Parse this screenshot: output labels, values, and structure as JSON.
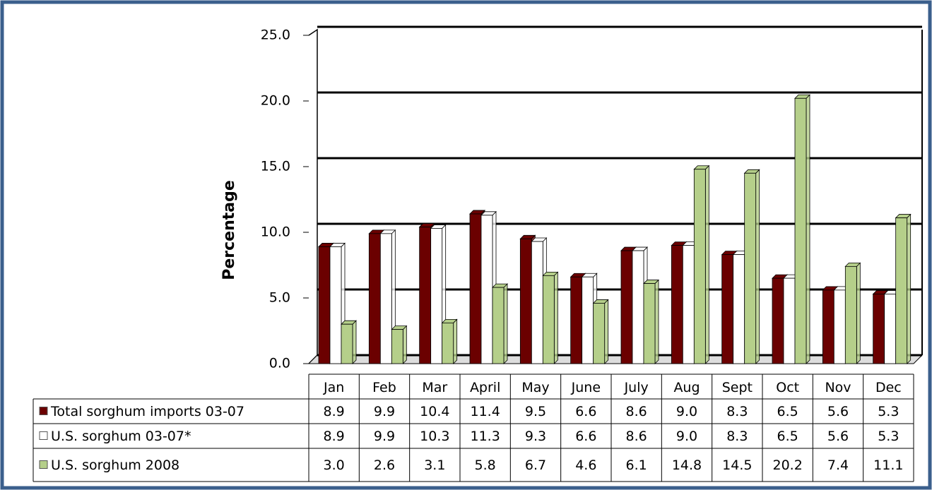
{
  "chart_data": {
    "type": "bar",
    "y_label": "Percentage",
    "categories": [
      "Jan",
      "Feb",
      "Mar",
      "April",
      "May",
      "June",
      "July",
      "Aug",
      "Sept",
      "Oct",
      "Nov",
      "Dec"
    ],
    "series": [
      {
        "name": "Total sorghum imports 03-07",
        "color": "#6b0000",
        "values": [
          8.9,
          9.9,
          10.4,
          11.4,
          9.5,
          6.6,
          8.6,
          9,
          8.3,
          6.5,
          5.6,
          5.3
        ],
        "value_labels": [
          "8.9",
          "9.9",
          "10.4",
          "11.4",
          "9.5",
          "6.6",
          "8.6",
          "9.0",
          "8.3",
          "6.5",
          "5.6",
          "5.3"
        ]
      },
      {
        "name": "U.S. sorghum 03-07*",
        "color": "#ffffff",
        "values": [
          8.9,
          9.9,
          10.3,
          11.3,
          9.3,
          6.6,
          8.6,
          9,
          8.3,
          6.5,
          5.6,
          5.3
        ],
        "value_labels": [
          "8.9",
          "9.9",
          "10.3",
          "11.3",
          "9.3",
          "6.6",
          "8.6",
          "9.0",
          "8.3",
          "6.5",
          "5.6",
          "5.3"
        ]
      },
      {
        "name": "U.S. sorghum 2008",
        "color": "#b5cf8a",
        "values": [
          3,
          2.6,
          3.1,
          5.8,
          6.7,
          4.6,
          6.1,
          14.8,
          14.5,
          20.2,
          7.4,
          11.1
        ],
        "value_labels": [
          "3.0",
          "2.6",
          "3.1",
          "5.8",
          "6.7",
          "4.6",
          "6.1",
          "14.8",
          "14.5",
          "20.2",
          "7.4",
          "11.1"
        ]
      }
    ],
    "ylim": [
      0,
      25
    ],
    "yticks": [
      {
        "value": 0,
        "label": "0.0"
      },
      {
        "value": 5,
        "label": "5.0"
      },
      {
        "value": 10,
        "label": "10.0"
      },
      {
        "value": 15,
        "label": "15.0"
      },
      {
        "value": 20,
        "label": "20.0"
      },
      {
        "value": 25,
        "label": "25.0"
      }
    ],
    "grid": true
  }
}
